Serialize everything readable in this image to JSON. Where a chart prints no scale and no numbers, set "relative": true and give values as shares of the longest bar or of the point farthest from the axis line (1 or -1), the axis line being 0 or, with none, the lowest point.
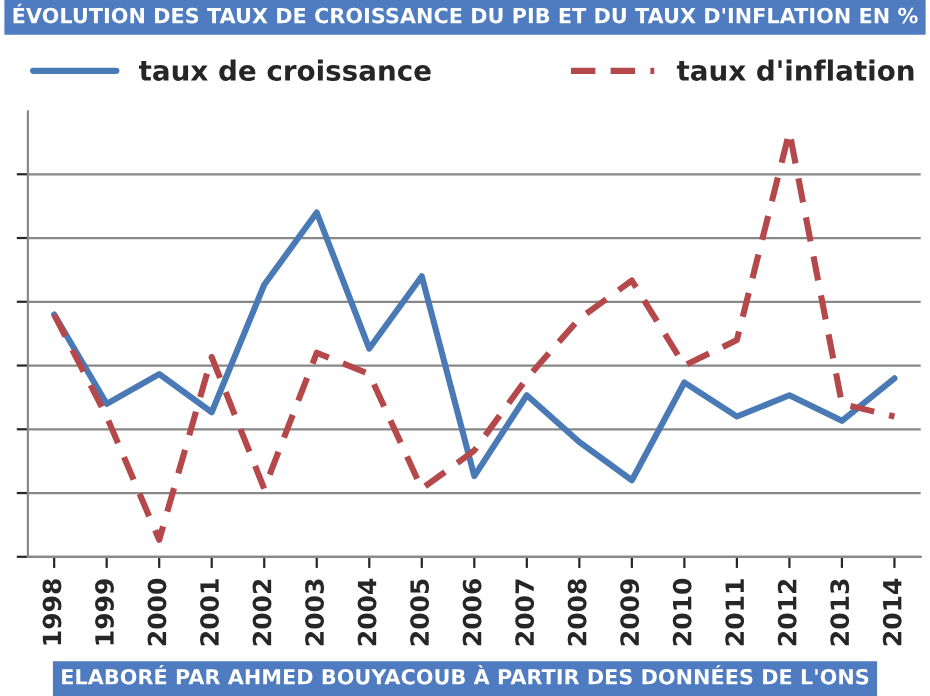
{
  "chart_data": {
    "type": "line",
    "title": "ÉVOLUTION DES TAUX DE CROISSANCE DU PIB ET DU TAUX D'INFLATION EN %",
    "categories": [
      "1998",
      "1999",
      "2000",
      "2001",
      "2002",
      "2003",
      "2004",
      "2005",
      "2006",
      "2007",
      "2008",
      "2009",
      "2010",
      "2011",
      "2012",
      "2013",
      "2014"
    ],
    "relative": true,
    "series": [
      {
        "name": "taux de croissance",
        "color": "#4a7ab5",
        "line_style": "solid",
        "values": [
          0.57,
          0.36,
          0.43,
          0.34,
          0.64,
          0.81,
          0.49,
          0.66,
          0.19,
          0.38,
          0.27,
          0.18,
          0.41,
          0.33,
          0.38,
          0.32,
          0.42
        ]
      },
      {
        "name": "taux d'inflation",
        "color": "#b5484a",
        "line_style": "dashed",
        "values": [
          0.57,
          0.33,
          0.04,
          0.47,
          0.16,
          0.48,
          0.43,
          0.16,
          0.25,
          0.42,
          0.56,
          0.65,
          0.45,
          0.51,
          1.0,
          0.36,
          0.33
        ]
      }
    ],
    "grid": "y",
    "legend": "top",
    "marker": "none",
    "annotations": [
      "ELABORÉ PAR AHMED BOUYACOUB À PARTIR DES DONNÉES DE L'ONS"
    ]
  }
}
